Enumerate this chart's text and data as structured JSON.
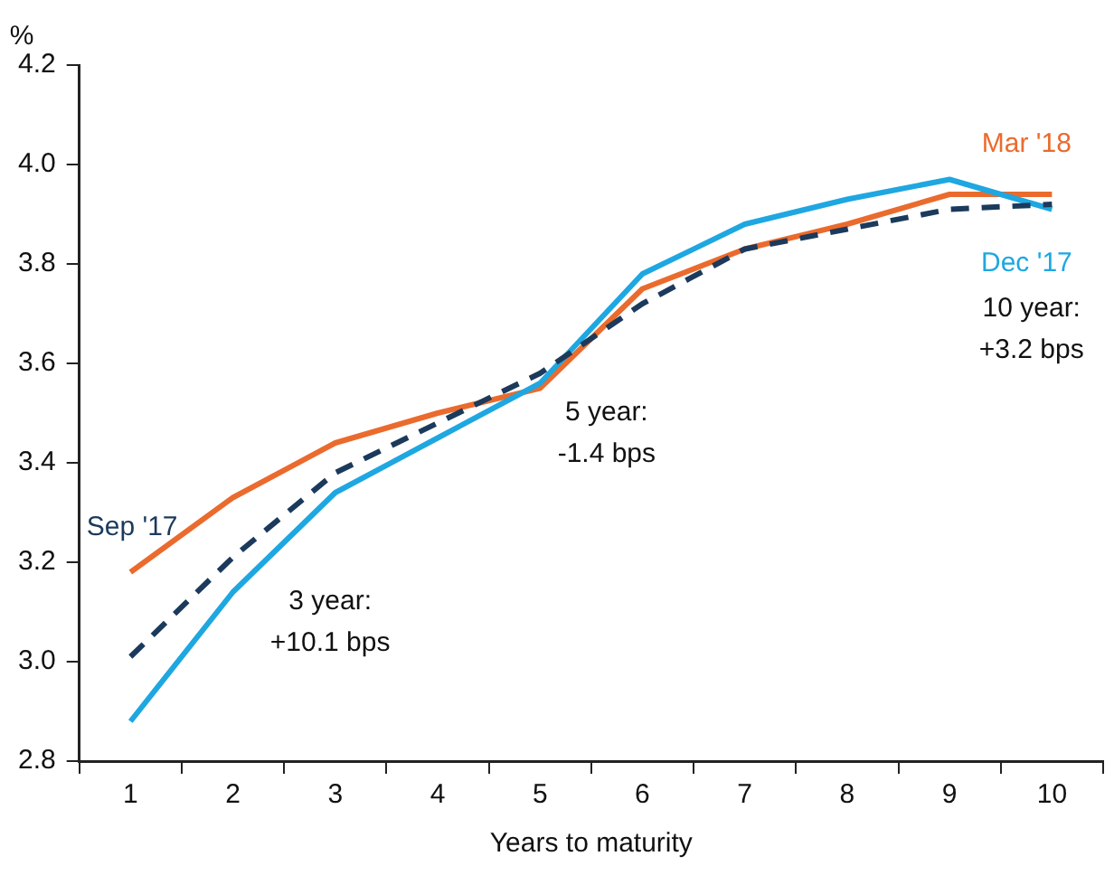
{
  "chart_data": {
    "type": "line",
    "ylabel": "%",
    "xlabel": "Years to maturity",
    "categories": [
      "1",
      "2",
      "3",
      "4",
      "5",
      "6",
      "7",
      "8",
      "9",
      "10"
    ],
    "series": [
      {
        "name": "Sep '17",
        "color": "#1b3a5c",
        "line_style": "dashed",
        "values": [
          3.01,
          3.21,
          3.38,
          3.48,
          3.58,
          3.72,
          3.83,
          3.87,
          3.91,
          3.92
        ]
      },
      {
        "name": "Dec '17",
        "color": "#1ea7e1",
        "line_style": "solid",
        "values": [
          2.88,
          3.14,
          3.34,
          3.45,
          3.56,
          3.78,
          3.88,
          3.93,
          3.97,
          3.91
        ]
      },
      {
        "name": "Mar '18",
        "color": "#ea6b2d",
        "line_style": "solid",
        "values": [
          3.18,
          3.33,
          3.44,
          3.5,
          3.55,
          3.75,
          3.83,
          3.88,
          3.94,
          3.94
        ]
      }
    ],
    "ylim": [
      2.8,
      4.2
    ],
    "yticks": [
      2.8,
      {
        "value": 3,
        "label": "3.0"
      },
      3.2,
      3.4,
      3.6,
      3.8,
      {
        "value": 4,
        "label": "4.0"
      },
      4.2
    ],
    "annotations": [
      "3 year:\n+10.1 bps",
      "5 year:\n-1.4 bps",
      "10 year:\n+3.2 bps"
    ],
    "grid": false,
    "legend": false,
    "marker": "none"
  }
}
